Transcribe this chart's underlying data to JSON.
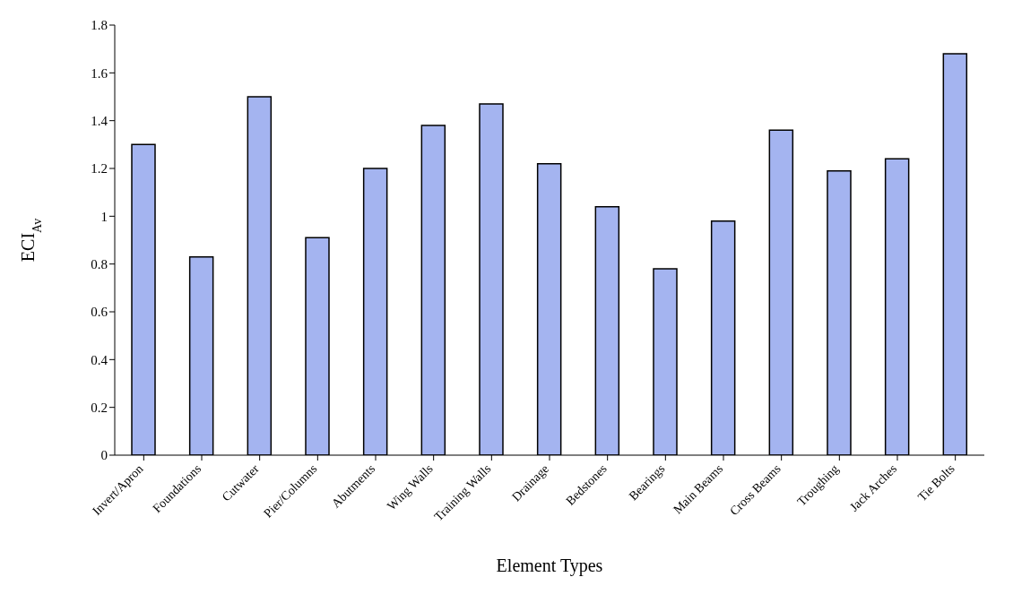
{
  "chart_data": {
    "type": "bar",
    "xlabel": "Element Types",
    "ylabel": "ECI$_{Av}$",
    "categories": [
      "Invert/Apron",
      "Foundations",
      "Cutwater",
      "Pier/Columns",
      "Abutments",
      "Wing Walls",
      "Training Walls",
      "Drainage",
      "Bedstones",
      "Bearings",
      "Main Beams",
      "Cross Beams",
      "Troughing",
      "Jack Arches",
      "Tie Bolts"
    ],
    "values": [
      1.3,
      0.83,
      1.5,
      0.91,
      1.2,
      1.38,
      1.47,
      1.22,
      1.04,
      0.78,
      0.98,
      1.36,
      1.19,
      1.24,
      1.68
    ],
    "color": "#a4b4f0",
    "ylim": [
      0,
      1.8
    ],
    "yticks": [
      0,
      0.2,
      0.4,
      0.6,
      0.8,
      1,
      1.2,
      1.4,
      1.6,
      1.8
    ],
    "grid": false
  }
}
